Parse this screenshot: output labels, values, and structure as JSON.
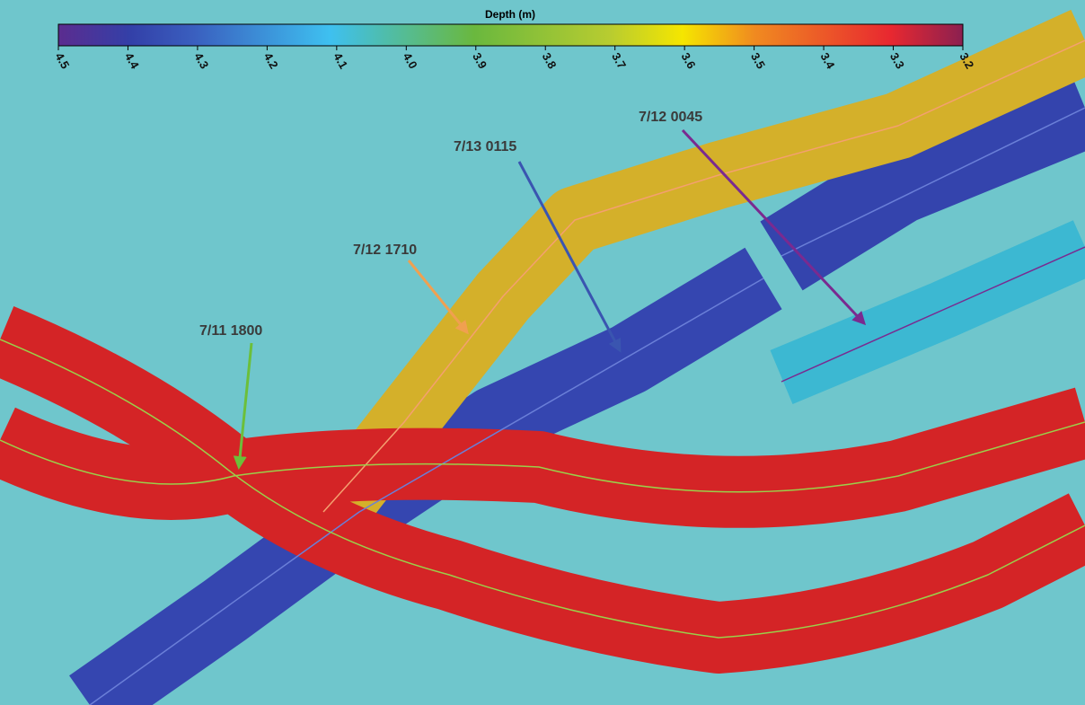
{
  "colorbar": {
    "title": "Depth (m)",
    "lim": [
      4.5,
      3.2
    ],
    "ticks": [
      4.5,
      4.4,
      4.3,
      4.2,
      4.1,
      {
        "value": 4,
        "label": "4.0"
      },
      3.9,
      3.8,
      3.7,
      3.6,
      3.5,
      3.4,
      3.3,
      3.2
    ]
  },
  "annotations": [
    {
      "label": "7/11 1800"
    },
    {
      "label": "7/12 1710"
    },
    {
      "label": "7/13 0115"
    },
    {
      "label": "7/12 0045"
    }
  ]
}
